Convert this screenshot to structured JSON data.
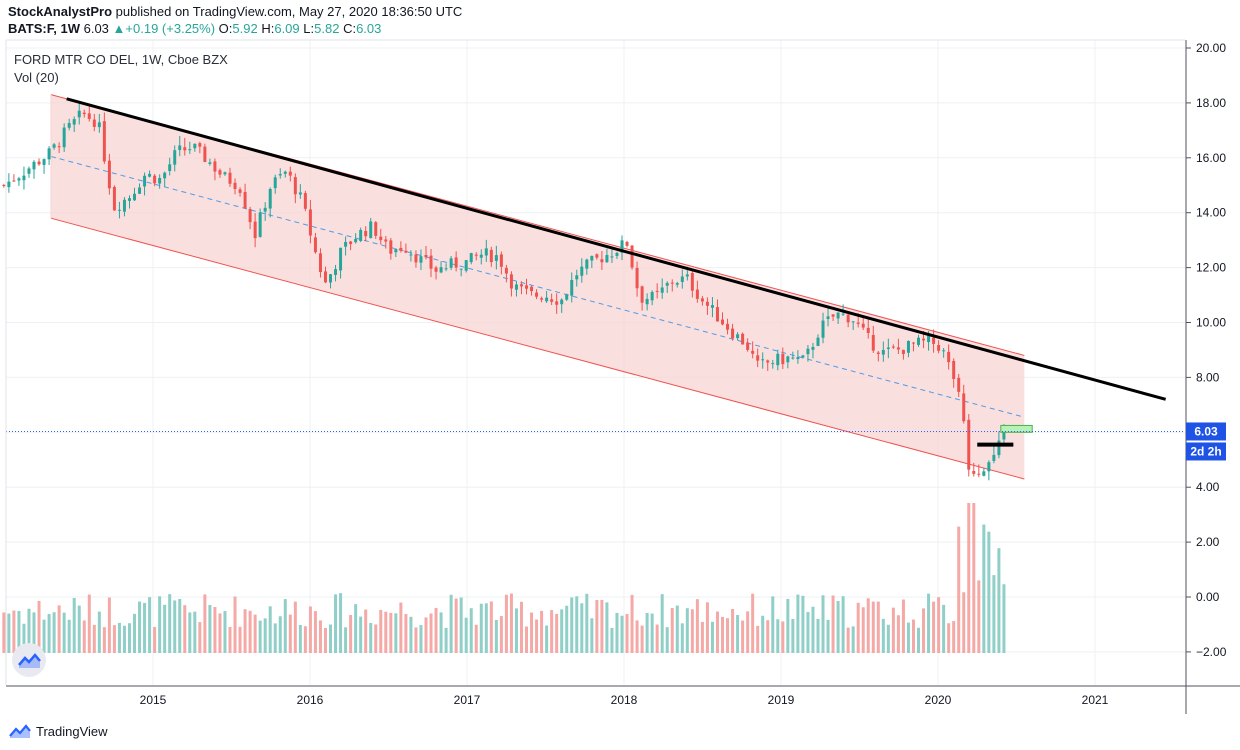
{
  "header": {
    "publisher": "StockAnalystPro",
    "published_text": "published on TradingView.com, May 27, 2020 18:36:50 UTC",
    "symbol": "BATS:F, 1W",
    "last": "6.03",
    "change": "+0.19 (+3.25%)",
    "o_label": "O:",
    "o_value": "5.92",
    "h_label": "H:",
    "h_value": "6.09",
    "l_label": "L:",
    "l_value": "5.82",
    "c_label": "C:",
    "c_value": "6.03"
  },
  "legend": {
    "title": "FORD MTR CO DEL, 1W, Cboe BZX",
    "volume": "Vol (20)"
  },
  "price_tag": {
    "value": "6.03",
    "countdown": "2d 2h"
  },
  "footer": {
    "brand": "TradingView"
  },
  "colors": {
    "up": "#26a69a",
    "down": "#ef5350",
    "vol_up": "#8fcfc8",
    "vol_down": "#f4a9a6",
    "channel_fill": "#f8d4d4",
    "channel_line": "#ef5350",
    "mid_line": "#4f9be8",
    "resistance": "#000000",
    "price_line": "#2962ff",
    "tag_bg": "#1e53e5"
  },
  "chart_data": {
    "type": "candlestick",
    "title": "FORD MTR CO DEL, 1W, Cboe BZX",
    "x_ticks": [
      "2015",
      "2016",
      "2017",
      "2018",
      "2019",
      "2020",
      "2021"
    ],
    "y_ticks": [
      "20.00",
      "18.00",
      "16.00",
      "14.00",
      "12.00",
      "10.00",
      "8.00",
      "6.00",
      "4.00",
      "2.00",
      "0.00",
      "−2.00"
    ],
    "ylim": [
      -3.1,
      20.0
    ],
    "xlim": [
      2014.05,
      2021.55
    ],
    "grid": true,
    "price_path": [
      [
        2014.05,
        15.0
      ],
      [
        2014.2,
        15.6
      ],
      [
        2014.35,
        16.2
      ],
      [
        2014.45,
        17.0
      ],
      [
        2014.55,
        17.6
      ],
      [
        2014.65,
        17.3
      ],
      [
        2014.75,
        14.2
      ],
      [
        2014.85,
        14.6
      ],
      [
        2014.95,
        15.4
      ],
      [
        2015.05,
        15.2
      ],
      [
        2015.15,
        16.2
      ],
      [
        2015.25,
        16.4
      ],
      [
        2015.35,
        15.9
      ],
      [
        2015.45,
        15.3
      ],
      [
        2015.55,
        15.0
      ],
      [
        2015.65,
        13.2
      ],
      [
        2015.75,
        15.0
      ],
      [
        2015.85,
        15.5
      ],
      [
        2015.95,
        14.4
      ],
      [
        2016.05,
        12.2
      ],
      [
        2016.1,
        11.4
      ],
      [
        2016.2,
        12.6
      ],
      [
        2016.3,
        13.2
      ],
      [
        2016.4,
        13.5
      ],
      [
        2016.5,
        12.6
      ],
      [
        2016.6,
        12.8
      ],
      [
        2016.7,
        12.3
      ],
      [
        2016.8,
        11.9
      ],
      [
        2016.9,
        12.1
      ],
      [
        2017.0,
        12.2
      ],
      [
        2017.1,
        12.5
      ],
      [
        2017.2,
        12.4
      ],
      [
        2017.3,
        11.3
      ],
      [
        2017.4,
        11.0
      ],
      [
        2017.5,
        11.0
      ],
      [
        2017.6,
        10.8
      ],
      [
        2017.7,
        11.8
      ],
      [
        2017.8,
        12.2
      ],
      [
        2017.9,
        12.5
      ],
      [
        2018.02,
        12.9
      ],
      [
        2018.1,
        10.9
      ],
      [
        2018.2,
        10.9
      ],
      [
        2018.3,
        11.5
      ],
      [
        2018.4,
        11.6
      ],
      [
        2018.5,
        10.8
      ],
      [
        2018.6,
        10.2
      ],
      [
        2018.7,
        9.6
      ],
      [
        2018.78,
        9.2
      ],
      [
        2018.85,
        8.4
      ],
      [
        2018.95,
        8.6
      ],
      [
        2019.05,
        8.7
      ],
      [
        2019.15,
        8.6
      ],
      [
        2019.25,
        9.8
      ],
      [
        2019.35,
        10.3
      ],
      [
        2019.45,
        10.2
      ],
      [
        2019.55,
        9.4
      ],
      [
        2019.65,
        8.9
      ],
      [
        2019.75,
        9.0
      ],
      [
        2019.85,
        9.2
      ],
      [
        2019.95,
        9.3
      ],
      [
        2020.02,
        9.1
      ],
      [
        2020.1,
        8.0
      ],
      [
        2020.16,
        6.6
      ],
      [
        2020.2,
        4.6
      ],
      [
        2020.25,
        4.6
      ],
      [
        2020.3,
        4.8
      ],
      [
        2020.35,
        5.0
      ],
      [
        2020.4,
        5.6
      ],
      [
        2020.42,
        6.03
      ]
    ],
    "volume_bars": 200,
    "annotations": {
      "channel": {
        "upper": [
          [
            2014.35,
            18.3
          ],
          [
            2020.55,
            8.8
          ]
        ],
        "lower": [
          [
            2014.35,
            13.8
          ],
          [
            2020.55,
            4.3
          ]
        ],
        "mid": [
          [
            2014.35,
            16.05
          ],
          [
            2020.55,
            6.55
          ]
        ]
      },
      "resistance_line": [
        [
          2014.45,
          18.15
        ],
        [
          2021.45,
          7.2
        ]
      ],
      "target_box": {
        "x": [
          2020.4,
          2020.6
        ],
        "y": [
          6.0,
          6.25
        ]
      },
      "black_bar": {
        "x": [
          2020.25,
          2020.48
        ],
        "y": 5.55
      },
      "last_price": 6.03
    }
  }
}
